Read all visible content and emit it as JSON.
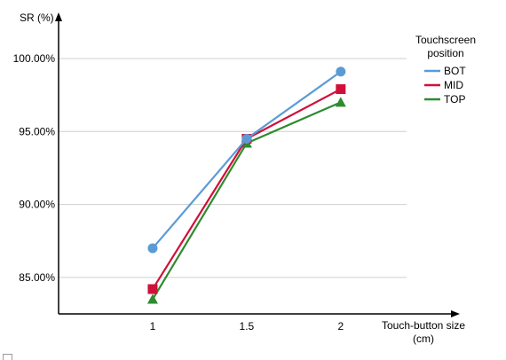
{
  "chart_data": {
    "type": "line",
    "ylabel": "SR (%)",
    "xlabel_line1": "Touch-button size",
    "xlabel_line2": "(cm)",
    "x": [
      1,
      1.5,
      2
    ],
    "x_tick_labels": [
      "1",
      "1.5",
      "2"
    ],
    "y_ticks": [
      85,
      90,
      95,
      100
    ],
    "y_tick_labels": [
      "85.00%",
      "90.00%",
      "95.00%",
      "100.00%"
    ],
    "ylim": [
      82.5,
      101.7
    ],
    "grid": "horizontal",
    "legend_title_line1": "Touchscreen",
    "legend_title_line2": "position",
    "legend_placement": "right",
    "series": [
      {
        "name": "BOT",
        "values": [
          87.0,
          94.5,
          99.1
        ],
        "color": "#5b9bd5",
        "marker": "circle"
      },
      {
        "name": "MID",
        "values": [
          84.2,
          94.5,
          97.9
        ],
        "color": "#d0103a",
        "marker": "square"
      },
      {
        "name": "TOP",
        "values": [
          83.5,
          94.2,
          97.0
        ],
        "color": "#2e8b2e",
        "marker": "triangle"
      }
    ]
  }
}
